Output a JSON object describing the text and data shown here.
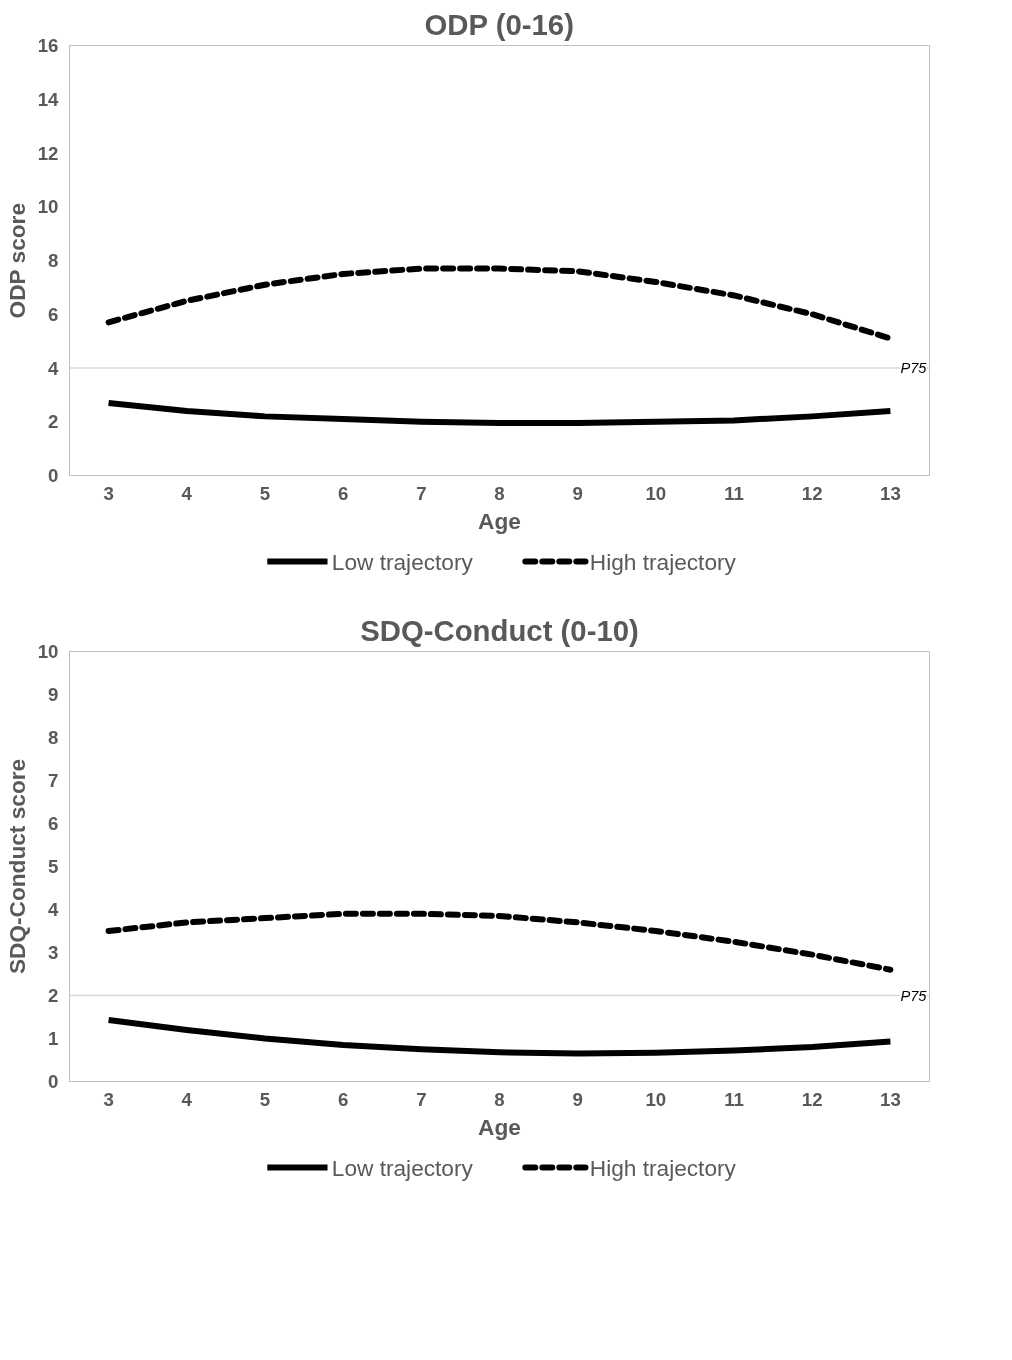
{
  "chart_data": [
    {
      "type": "line",
      "title": "ODP (0-16)",
      "xlabel": "Age",
      "ylabel": "ODP score",
      "x": [
        3,
        4,
        5,
        6,
        7,
        8,
        9,
        10,
        11,
        12,
        13
      ],
      "xlim": [
        2.5,
        13.5
      ],
      "xticks": [
        3,
        4,
        5,
        6,
        7,
        8,
        9,
        10,
        11,
        12,
        13
      ],
      "ylim": [
        0,
        16
      ],
      "yticks": [
        0,
        2,
        4,
        6,
        8,
        10,
        12,
        14,
        16
      ],
      "grid": false,
      "legend": "bottom",
      "marker": "none",
      "series": [
        {
          "name": "Low trajectory",
          "color": "#000000",
          "line_style": "solid",
          "values": [
            2.7,
            2.4,
            2.2,
            2.1,
            2.0,
            1.95,
            1.95,
            2.0,
            2.05,
            2.2,
            2.4
          ]
        },
        {
          "name": "High trajectory",
          "color": "#000000",
          "line_style": "dashed",
          "values": [
            5.7,
            6.5,
            7.1,
            7.5,
            7.7,
            7.7,
            7.6,
            7.2,
            6.7,
            6.0,
            5.1
          ]
        }
      ],
      "ref_lines": [
        {
          "axis": "y",
          "value": 4,
          "label": "P75",
          "color": "#d9d9d9"
        }
      ]
    },
    {
      "type": "line",
      "title": "SDQ-Conduct (0-10)",
      "xlabel": "Age",
      "ylabel": "SDQ-Conduct score",
      "x": [
        3,
        4,
        5,
        6,
        7,
        8,
        9,
        10,
        11,
        12,
        13
      ],
      "xlim": [
        2.5,
        13.5
      ],
      "xticks": [
        3,
        4,
        5,
        6,
        7,
        8,
        9,
        10,
        11,
        12,
        13
      ],
      "ylim": [
        0,
        10
      ],
      "yticks": [
        0,
        1,
        2,
        3,
        4,
        5,
        6,
        7,
        8,
        9,
        10
      ],
      "grid": false,
      "legend": "bottom",
      "marker": "none",
      "series": [
        {
          "name": "Low trajectory",
          "color": "#000000",
          "line_style": "solid",
          "values": [
            1.43,
            1.2,
            1.0,
            0.85,
            0.75,
            0.68,
            0.65,
            0.67,
            0.72,
            0.8,
            0.93
          ]
        },
        {
          "name": "High trajectory",
          "color": "#000000",
          "line_style": "dashed",
          "values": [
            3.5,
            3.7,
            3.8,
            3.9,
            3.9,
            3.85,
            3.7,
            3.5,
            3.25,
            2.95,
            2.6
          ]
        }
      ],
      "ref_lines": [
        {
          "axis": "y",
          "value": 2,
          "label": "P75",
          "color": "#d9d9d9"
        }
      ]
    }
  ]
}
